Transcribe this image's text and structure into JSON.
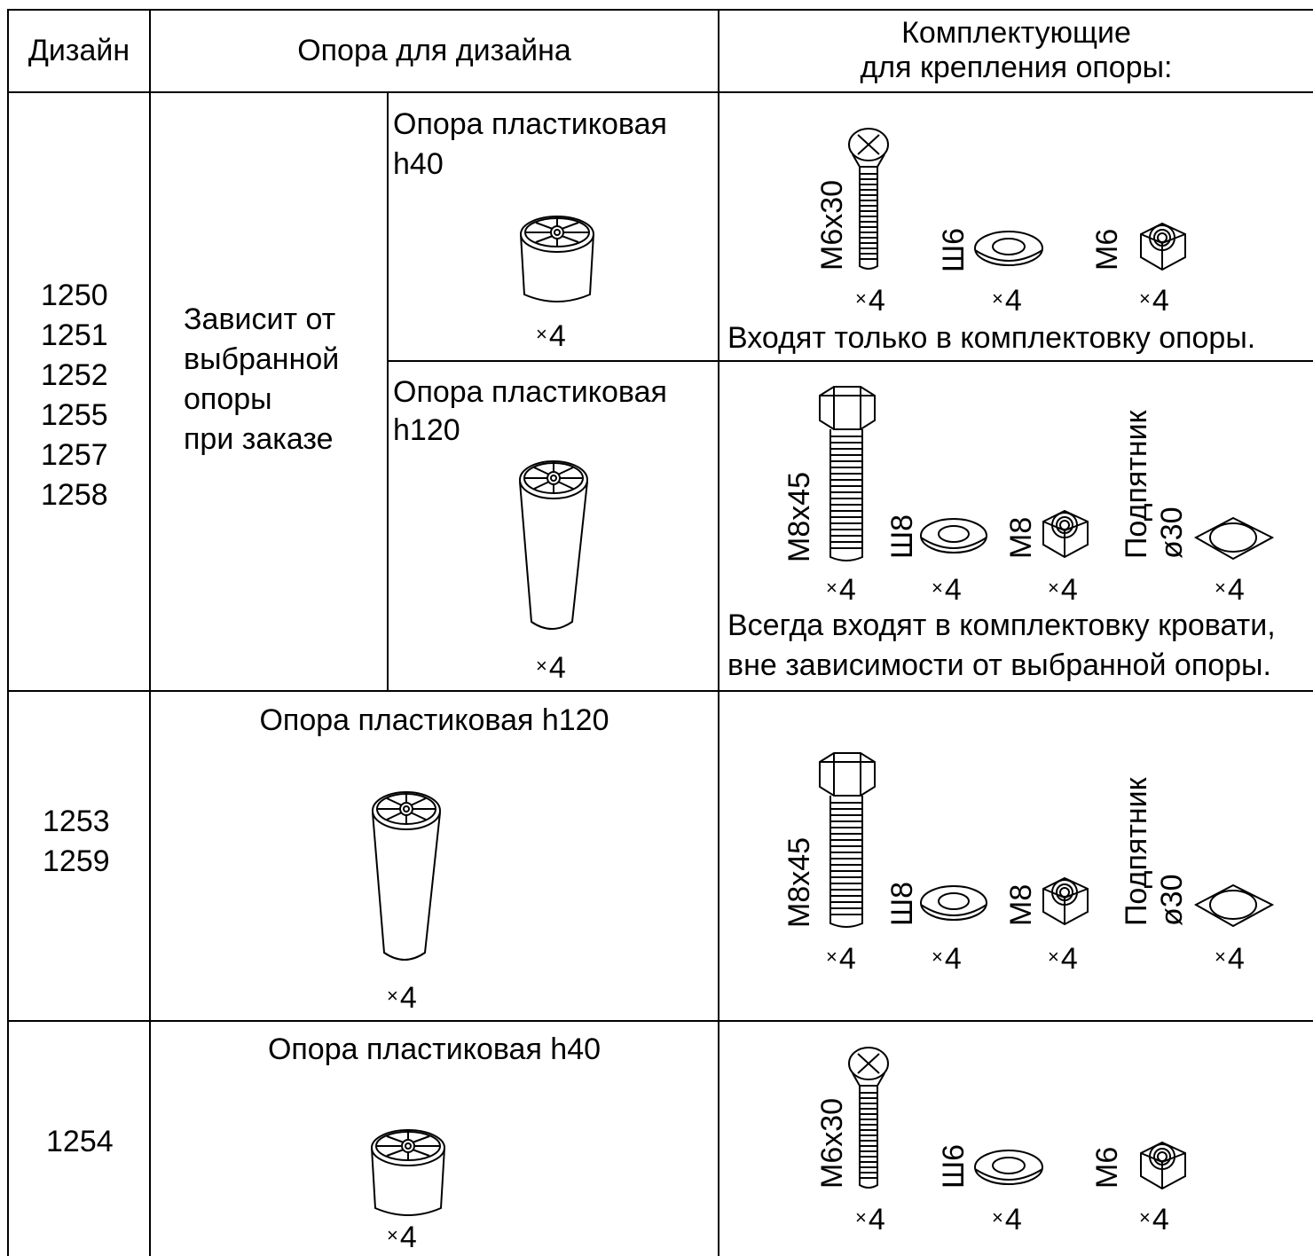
{
  "header": {
    "design": "Дизайн",
    "support": "Опора для дизайна",
    "hardware_line1": "Комплектующие",
    "hardware_line2": "для крепления опоры:"
  },
  "row1": {
    "designs": [
      "1250",
      "1251",
      "1252",
      "1255",
      "1257",
      "1258"
    ],
    "depends": [
      "Зависит от",
      "выбранной",
      "опоры",
      "при заказе"
    ],
    "opt_a": {
      "title1": "Опора пластиковая",
      "title2": "h40",
      "qty": "4"
    },
    "opt_b": {
      "title1": "Опора пластиковая",
      "title2": "h120",
      "qty": "4"
    },
    "hw_a": {
      "bolt": "М6х30",
      "washer": "Ш6",
      "nut": "М6",
      "qty": [
        "4",
        "4",
        "4"
      ],
      "note": "Входят только в комплектовку опоры."
    },
    "hw_b": {
      "bolt": "М8х45",
      "washer": "Ш8",
      "nut": "М8",
      "pad1": "Подпятник",
      "pad2": "ø30",
      "qty": [
        "4",
        "4",
        "4",
        "4"
      ],
      "note1": "Всегда входят в комплектовку кровати,",
      "note2": "вне зависимости от выбранной опоры."
    }
  },
  "row2": {
    "designs": [
      "1253",
      "1259"
    ],
    "support": "Опора пластиковая h120",
    "qty": "4",
    "hw": {
      "bolt": "М8х45",
      "washer": "Ш8",
      "nut": "М8",
      "pad1": "Подпятник",
      "pad2": "ø30",
      "qty": [
        "4",
        "4",
        "4",
        "4"
      ]
    }
  },
  "row3": {
    "designs": [
      "1254"
    ],
    "support": "Опора пластиковая h40",
    "qty": "4",
    "hw": {
      "bolt": "М6х30",
      "washer": "Ш6",
      "nut": "М6",
      "qty": [
        "4",
        "4",
        "4"
      ]
    }
  },
  "multiplier": "×"
}
